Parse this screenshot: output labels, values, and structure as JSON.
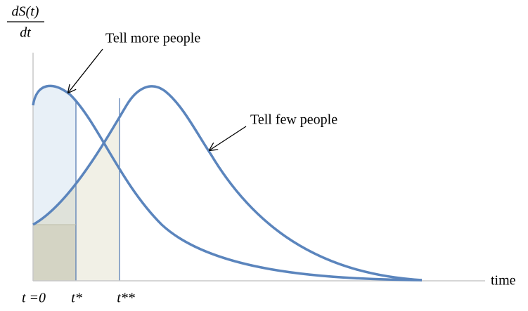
{
  "y_label": {
    "numerator": "dS(t)",
    "denominator": "dt"
  },
  "x_label": "time",
  "annotations": [
    "Tell more people",
    "Tell few people"
  ],
  "x_ticks": [
    "t =0",
    "t*",
    "t**"
  ]
}
